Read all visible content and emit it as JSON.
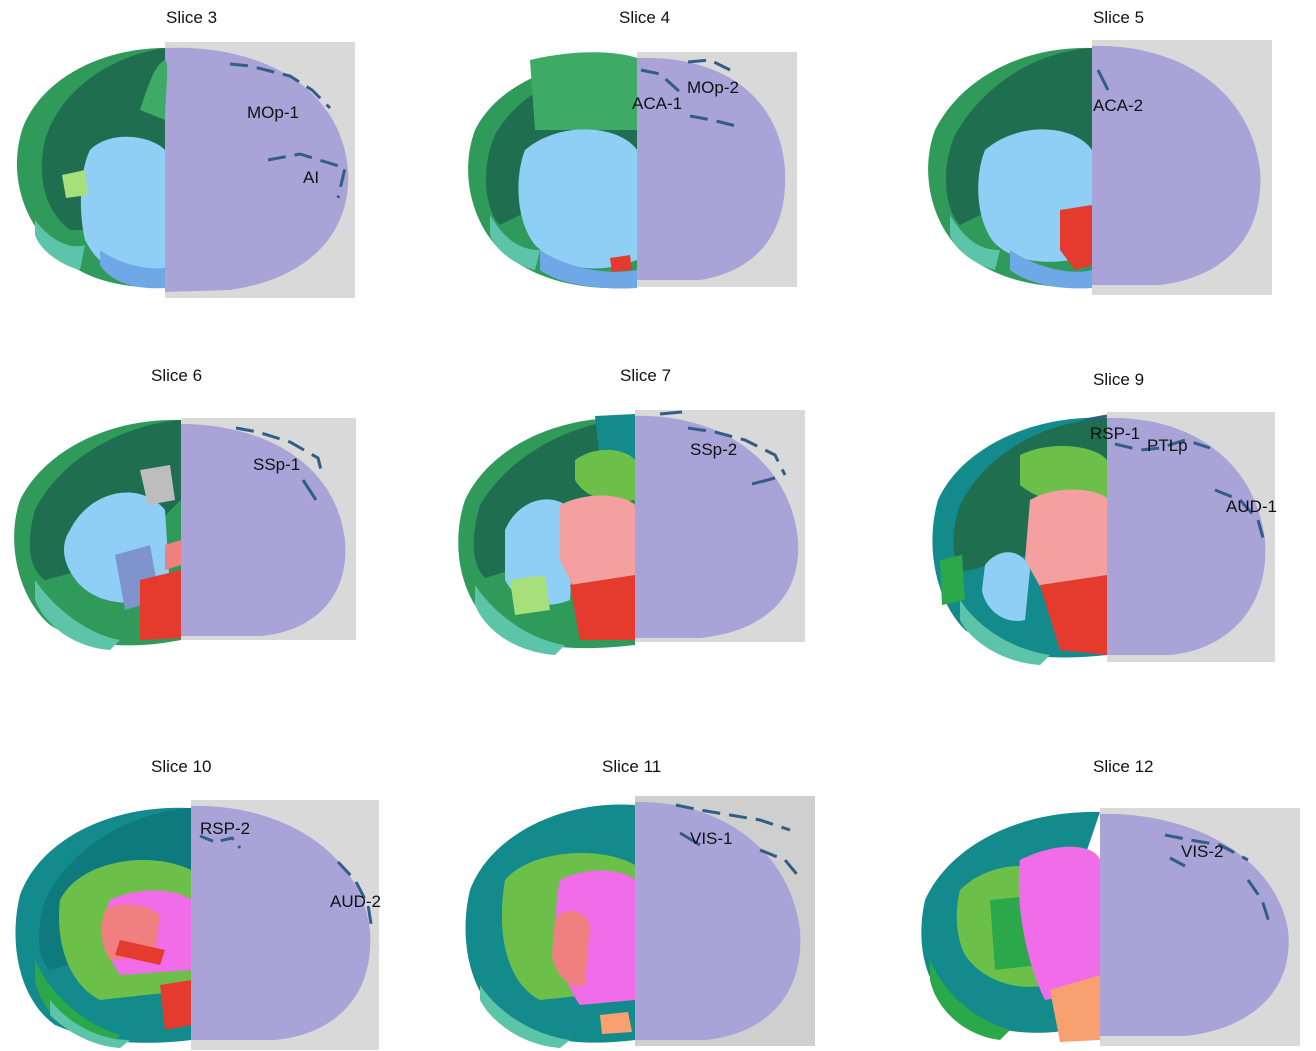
{
  "panels": [
    {
      "title": "Slice 3",
      "labels": [
        "MOp-1",
        "AI"
      ]
    },
    {
      "title": "Slice 4",
      "labels": [
        "ACA-1",
        "MOp-2"
      ]
    },
    {
      "title": "Slice 5",
      "labels": [
        "ACA-2"
      ]
    },
    {
      "title": "Slice 6",
      "labels": [
        "SSp-1"
      ]
    },
    {
      "title": "Slice 7",
      "labels": [
        "SSp-2"
      ]
    },
    {
      "title": "Slice 9",
      "labels": [
        "RSP-1",
        "PTLp",
        "AUD-1"
      ]
    },
    {
      "title": "Slice 10",
      "labels": [
        "RSP-2",
        "AUD-2"
      ]
    },
    {
      "title": "Slice 11",
      "labels": [
        "VIS-1"
      ]
    },
    {
      "title": "Slice 12",
      "labels": [
        "VIS-2"
      ]
    }
  ],
  "colors": {
    "cortex_dark": "#1f6e4f",
    "cortex_mid": "#2f9a5a",
    "cortex_teal": "#138a8c",
    "striatum": "#8fcff5",
    "striatum_dark": "#6fa8e6",
    "thalamus": "#f08080",
    "hypothalamus": "#e53a2e",
    "midbrain": "#f06ce8",
    "hippocampus": "#6cc04a",
    "olfactory": "#5cc4a8",
    "nissl": "#a7a2d6",
    "boundary": "#2f5f86"
  }
}
